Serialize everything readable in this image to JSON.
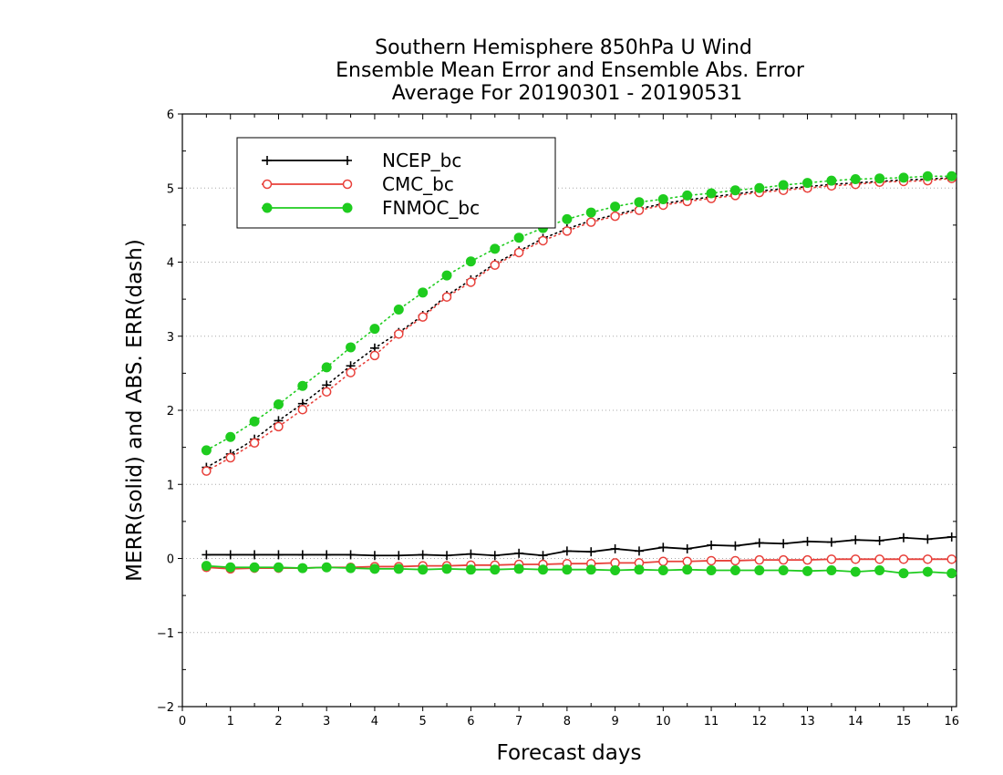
{
  "chart_data": {
    "type": "line",
    "title_lines": [
      "Southern Hemisphere 850hPa U Wind",
      "Ensemble Mean Error and Ensemble Abs. Error",
      "Average For 20190301 - 20190531"
    ],
    "xlabel": "Forecast days",
    "ylabel": "MERR(solid) and ABS. ERR(dash)",
    "xlim": [
      0,
      16.1
    ],
    "ylim": [
      -2,
      6
    ],
    "xticks": [
      0,
      1,
      2,
      3,
      4,
      5,
      6,
      7,
      8,
      9,
      10,
      11,
      12,
      13,
      14,
      15,
      16
    ],
    "yticks": [
      -2,
      -1,
      0,
      1,
      2,
      3,
      4,
      5,
      6
    ],
    "grid": "dotted horizontal",
    "legend_position": "top-left",
    "x": [
      0.5,
      1,
      1.5,
      2,
      2.5,
      3,
      3.5,
      4,
      4.5,
      5,
      5.5,
      6,
      6.5,
      7,
      7.5,
      8,
      8.5,
      9,
      9.5,
      10,
      10.5,
      11,
      11.5,
      12,
      12.5,
      13,
      13.5,
      14,
      14.5,
      15,
      15.5,
      16
    ],
    "series": [
      {
        "name": "NCEP_bc",
        "color": "#000000",
        "marker": "plus",
        "merr": [
          0.05,
          0.05,
          0.05,
          0.05,
          0.05,
          0.05,
          0.05,
          0.04,
          0.04,
          0.05,
          0.04,
          0.06,
          0.04,
          0.07,
          0.04,
          0.1,
          0.09,
          0.13,
          0.1,
          0.15,
          0.13,
          0.18,
          0.17,
          0.21,
          0.2,
          0.23,
          0.22,
          0.25,
          0.24,
          0.28,
          0.26,
          0.29
        ],
        "abs_err": [
          1.23,
          1.41,
          1.61,
          1.86,
          2.09,
          2.34,
          2.6,
          2.84,
          3.05,
          3.28,
          3.55,
          3.76,
          3.98,
          4.15,
          4.32,
          4.45,
          4.56,
          4.64,
          4.72,
          4.79,
          4.84,
          4.88,
          4.92,
          4.96,
          4.99,
          5.02,
          5.05,
          5.07,
          5.09,
          5.11,
          5.12,
          5.14
        ]
      },
      {
        "name": "CMC_bc",
        "color": "#e8403a",
        "marker": "open-circle",
        "merr": [
          -0.12,
          -0.14,
          -0.13,
          -0.13,
          -0.13,
          -0.12,
          -0.12,
          -0.11,
          -0.11,
          -0.1,
          -0.1,
          -0.09,
          -0.09,
          -0.08,
          -0.08,
          -0.07,
          -0.07,
          -0.06,
          -0.06,
          -0.04,
          -0.04,
          -0.03,
          -0.03,
          -0.02,
          -0.02,
          -0.02,
          -0.01,
          -0.01,
          -0.01,
          -0.01,
          -0.01,
          -0.01
        ],
        "abs_err": [
          1.18,
          1.36,
          1.56,
          1.78,
          2.01,
          2.25,
          2.51,
          2.74,
          3.03,
          3.26,
          3.53,
          3.73,
          3.96,
          4.13,
          4.29,
          4.42,
          4.54,
          4.62,
          4.7,
          4.77,
          4.82,
          4.86,
          4.9,
          4.94,
          4.97,
          5.0,
          5.03,
          5.05,
          5.08,
          5.09,
          5.1,
          5.13
        ]
      },
      {
        "name": "FNMOC_bc",
        "color": "#1fcc1f",
        "marker": "filled-circle",
        "merr": [
          -0.1,
          -0.12,
          -0.12,
          -0.12,
          -0.13,
          -0.12,
          -0.13,
          -0.14,
          -0.14,
          -0.15,
          -0.14,
          -0.15,
          -0.15,
          -0.14,
          -0.15,
          -0.15,
          -0.15,
          -0.16,
          -0.15,
          -0.16,
          -0.15,
          -0.16,
          -0.16,
          -0.16,
          -0.16,
          -0.17,
          -0.16,
          -0.18,
          -0.16,
          -0.2,
          -0.18,
          -0.2
        ],
        "abs_err": [
          1.46,
          1.64,
          1.85,
          2.08,
          2.33,
          2.58,
          2.85,
          3.1,
          3.36,
          3.59,
          3.82,
          4.01,
          4.18,
          4.33,
          4.46,
          4.58,
          4.67,
          4.75,
          4.81,
          4.85,
          4.9,
          4.93,
          4.97,
          5.0,
          5.04,
          5.07,
          5.1,
          5.12,
          5.13,
          5.14,
          5.16,
          5.16
        ]
      }
    ]
  }
}
